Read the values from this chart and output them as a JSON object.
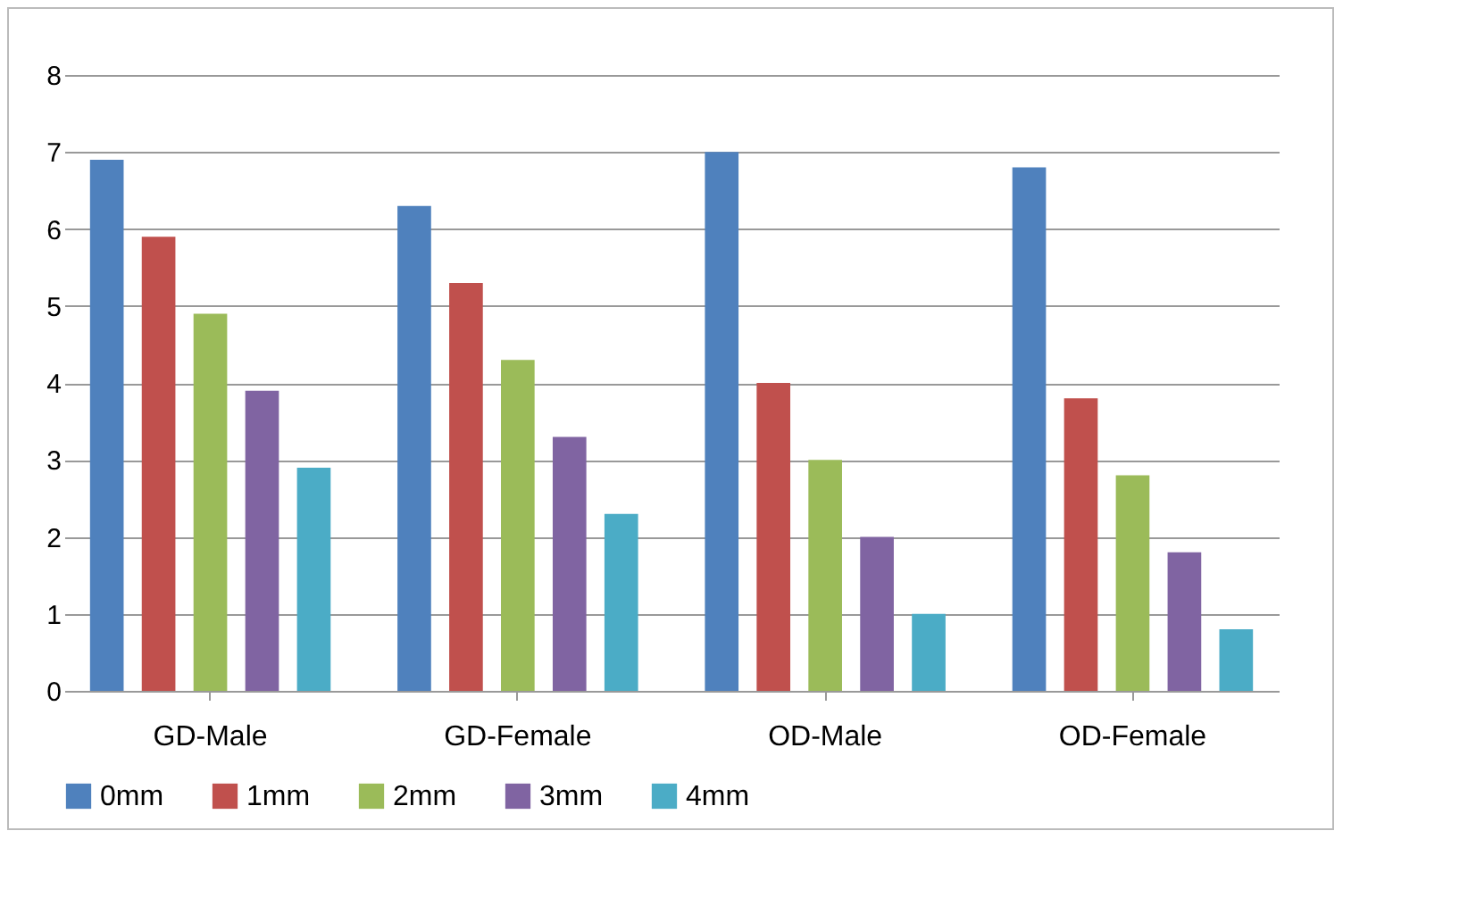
{
  "chart_data": {
    "type": "bar",
    "categories": [
      "GD-Male",
      "GD-Female",
      "OD-Male",
      "OD-Female"
    ],
    "series": [
      {
        "name": "0mm",
        "color": "#4f81bd",
        "values": [
          6.9,
          6.3,
          7.0,
          6.8
        ]
      },
      {
        "name": "1mm",
        "color": "#c0504d",
        "values": [
          5.9,
          5.3,
          4.0,
          3.8
        ]
      },
      {
        "name": "2mm",
        "color": "#9bbb59",
        "values": [
          4.9,
          4.3,
          3.0,
          2.8
        ]
      },
      {
        "name": "3mm",
        "color": "#8064a2",
        "values": [
          3.9,
          3.3,
          2.0,
          1.8
        ]
      },
      {
        "name": "4mm",
        "color": "#4bacc6",
        "values": [
          2.9,
          2.3,
          1.0,
          0.8
        ]
      }
    ],
    "ylim": [
      0,
      8
    ],
    "yticks": [
      0,
      1,
      2,
      3,
      4,
      5,
      6,
      7,
      8
    ],
    "grid": "y",
    "legend": "bottom"
  }
}
